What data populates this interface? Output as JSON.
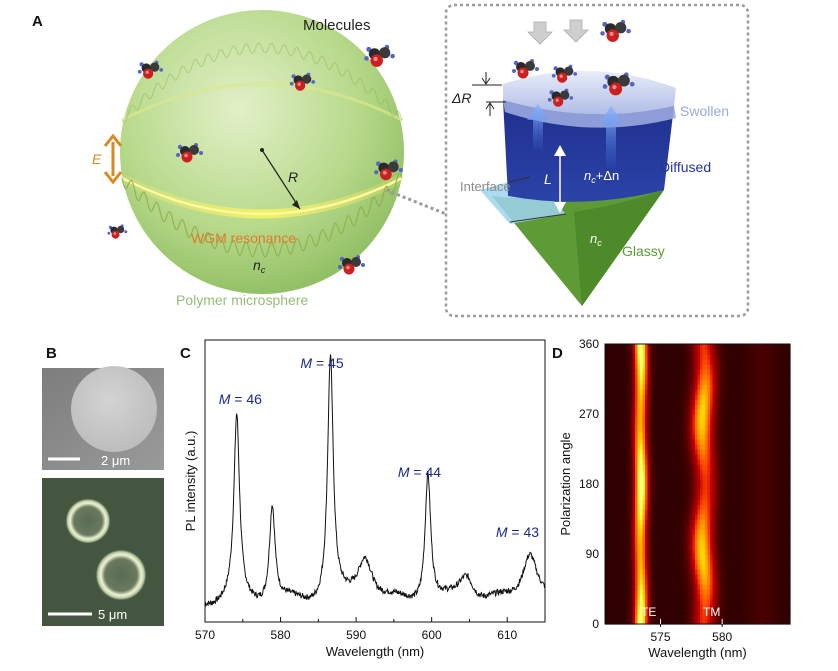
{
  "panelA": {
    "letter": "A",
    "molecules_label": "Molecules",
    "E_label": "E",
    "R_label": "R",
    "wgm_label": "WGM resonance",
    "nc_label": "n",
    "nc_sub": "c",
    "sphere_label": "Polymer microsphere",
    "deltaR_label": "ΔR",
    "interface_label": "Interface",
    "L_label": "L",
    "nc_delta_label": "n",
    "nc_delta_sub": "c",
    "nc_delta_tail": "+Δn",
    "cone_nc_label": "n",
    "cone_nc_sub": "c",
    "swollen_label": "Swollen",
    "diffused_label": "Diffused",
    "glassy_label": "Glassy"
  },
  "panelB": {
    "letter": "B",
    "scale_top": "2 μm",
    "scale_bottom": "5 μm"
  },
  "panelC": {
    "letter": "C",
    "peak_labels": [
      {
        "M": "M",
        "eq": " = 46",
        "x": 574.2
      },
      {
        "M": "M",
        "eq": " = 45",
        "x": 586.6
      },
      {
        "M": "M",
        "eq": " = 44",
        "x": 599.5
      },
      {
        "M": "M",
        "eq": " = 43",
        "x": 613.0
      }
    ]
  },
  "panelD": {
    "letter": "D",
    "mode_labels": [
      "TE",
      "TM"
    ]
  },
  "colors": {
    "sphere_green": "#b7d98a",
    "wgm_yellow": "#f4f06a",
    "swollen": "#b9c6ec",
    "diffused": "#23359a",
    "glassy": "#5e9a35",
    "peak_label_blue": "#1c2a8c",
    "e_arrow": "#d98a1f"
  },
  "chart_data": [
    {
      "type": "line",
      "xlabel": "Wavelength (nm)",
      "ylabel": "PL intensity (a.u.)",
      "xlim": [
        570,
        615
      ],
      "xticks": [
        "570",
        "580",
        "590",
        "600",
        "610"
      ],
      "peaks": [
        {
          "x": 574.2,
          "height": 0.68
        },
        {
          "x": 578.9,
          "height": 0.36
        },
        {
          "x": 586.6,
          "height": 0.9
        },
        {
          "x": 591.2,
          "height": 0.17
        },
        {
          "x": 599.5,
          "height": 0.48
        },
        {
          "x": 604.6,
          "height": 0.1
        },
        {
          "x": 613.0,
          "height": 0.19
        }
      ]
    },
    {
      "type": "heatmap",
      "xlabel": "Wavelength (nm)",
      "ylabel": "Polarization angle",
      "xlim": [
        570.5,
        585.5
      ],
      "ylim": [
        0,
        360
      ],
      "xticks": [
        "575",
        "580"
      ],
      "yticks": [
        "0",
        "90",
        "180",
        "270",
        "360"
      ],
      "bands": [
        {
          "name": "TE",
          "center": 573.4
        },
        {
          "name": "TM",
          "center": 578.5
        }
      ]
    }
  ]
}
